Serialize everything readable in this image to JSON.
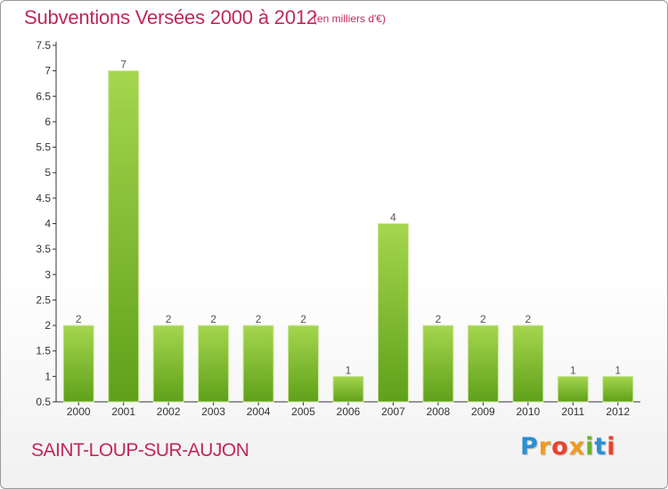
{
  "title": "Subventions Versées 2000 à 2012",
  "subtitle": "(en milliers d'€)",
  "commune": "SAINT-LOUP-SUR-AUJON",
  "logo": "Proxiti",
  "colors": {
    "bar_light": "#a5d64e",
    "bar_dark": "#5fa01a",
    "title": "#c0285a"
  },
  "chart_data": {
    "type": "bar",
    "title": "Subventions Versées 2000 à 2012",
    "categories": [
      "2000",
      "2001",
      "2002",
      "2003",
      "2004",
      "2005",
      "2006",
      "2007",
      "2008",
      "2009",
      "2010",
      "2011",
      "2012"
    ],
    "values": [
      2,
      7,
      2,
      2,
      2,
      2,
      1,
      4,
      2,
      2,
      2,
      1,
      1
    ],
    "data_labels": [
      "2",
      "7",
      "2",
      "2",
      "2",
      "2",
      "1",
      "4",
      "2",
      "2",
      "2",
      "1",
      "1"
    ],
    "ylim": [
      0.5,
      7.5
    ],
    "yticks": [
      0.5,
      1,
      1.5,
      2,
      2.5,
      3,
      3.5,
      4,
      4.5,
      5,
      5.5,
      6,
      6.5,
      7,
      7.5
    ],
    "ytick_labels": [
      "0.5",
      "1",
      "1.5",
      "2",
      "2.5",
      "3",
      "3.5",
      "4",
      "4.5",
      "5",
      "5.5",
      "6",
      "6.5",
      "7",
      "7.5"
    ],
    "grid": false,
    "legend": "none"
  }
}
